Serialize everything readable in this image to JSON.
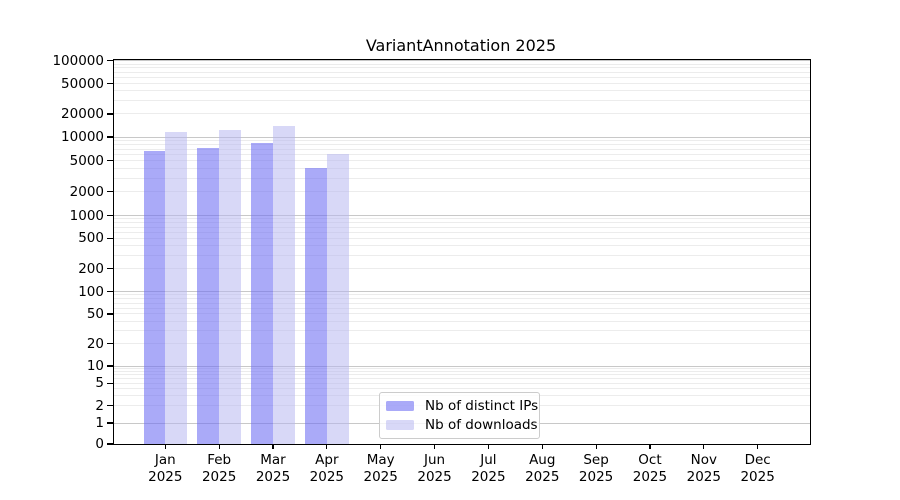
{
  "chart_data": {
    "type": "bar",
    "title": "VariantAnnotation 2025",
    "categories": [
      "Jan 2025",
      "Feb 2025",
      "Mar 2025",
      "Apr 2025",
      "May 2025",
      "Jun 2025",
      "Jul 2025",
      "Aug 2025",
      "Sep 2025",
      "Oct 2025",
      "Nov 2025",
      "Dec 2025"
    ],
    "x_tick_months": [
      "Jan",
      "Feb",
      "Mar",
      "Apr",
      "May",
      "Jun",
      "Jul",
      "Aug",
      "Sep",
      "Oct",
      "Nov",
      "Dec"
    ],
    "x_tick_year": "2025",
    "series": [
      {
        "name": "Nb of distinct IPs",
        "fill": "rgba(110,110,243,0.59)",
        "values": [
          6700,
          7200,
          8500,
          4000,
          0,
          0,
          0,
          0,
          0,
          0,
          0,
          0
        ]
      },
      {
        "name": "Nb of downloads",
        "fill": "rgba(180,180,240,0.52)",
        "values": [
          11700,
          12500,
          13900,
          6100,
          0,
          0,
          0,
          0,
          0,
          0,
          0,
          0
        ]
      }
    ],
    "y_ticks": [
      0,
      1,
      2,
      5,
      10,
      20,
      50,
      100,
      200,
      500,
      1000,
      2000,
      5000,
      10000,
      20000,
      50000,
      100000
    ],
    "y_scale": "symlog",
    "ylim": [
      0,
      100000
    ],
    "grid": {
      "horizontal_major": true,
      "horizontal_minor": true,
      "vertical": false
    },
    "legend_position": "lower center"
  },
  "colors": {
    "background": "#ffffff",
    "axis": "#000000",
    "text": "#000000",
    "major_grid": "#c8c8c8",
    "minor_grid": "#ececec",
    "legend_border": "#cccccc"
  }
}
